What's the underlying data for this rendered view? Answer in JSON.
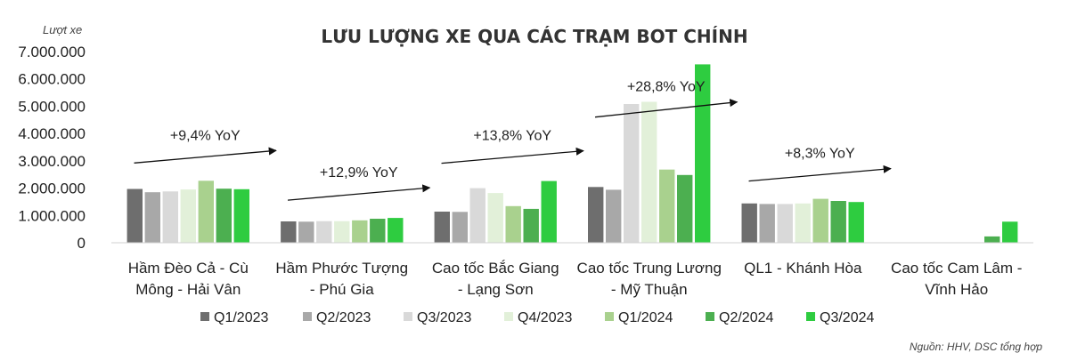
{
  "chart_data": {
    "type": "bar",
    "title": "LƯU LƯỢNG XE QUA CÁC TRẠM BOT CHÍNH",
    "ylabel": "Lượt xe",
    "xlabel": "",
    "ylim": [
      0,
      7000000
    ],
    "yticks": [
      0,
      1000000,
      2000000,
      3000000,
      4000000,
      5000000,
      6000000,
      7000000
    ],
    "ytick_labels": [
      "0",
      "1.000.000",
      "2.000.000",
      "3.000.000",
      "4.000.000",
      "5.000.000",
      "6.000.000",
      "7.000.000"
    ],
    "grid": false,
    "legend_position": "bottom",
    "categories": [
      [
        "Hầm Đèo Cả - Cù",
        "Mông - Hải Vân"
      ],
      [
        "Hầm Phước Tượng",
        "- Phú Gia"
      ],
      [
        "Cao tốc Bắc Giang",
        "- Lạng Sơn"
      ],
      [
        "Cao tốc Trung Lương",
        "- Mỹ Thuận"
      ],
      [
        "QL1 - Khánh Hòa"
      ],
      [
        "Cao tốc Cam Lâm -",
        "Vĩnh Hảo"
      ]
    ],
    "series": [
      {
        "name": "Q1/2023",
        "color": "#6e6e6e",
        "values": [
          1970000,
          780000,
          1140000,
          2040000,
          1440000,
          0
        ]
      },
      {
        "name": "Q2/2023",
        "color": "#a8a8a8",
        "values": [
          1850000,
          770000,
          1130000,
          1940000,
          1420000,
          0
        ]
      },
      {
        "name": "Q3/2023",
        "color": "#d9d9d9",
        "values": [
          1880000,
          790000,
          2000000,
          5080000,
          1420000,
          0
        ]
      },
      {
        "name": "Q4/2023",
        "color": "#e2f0d9",
        "values": [
          1950000,
          790000,
          1820000,
          5160000,
          1440000,
          0
        ]
      },
      {
        "name": "Q1/2024",
        "color": "#a9d18e",
        "values": [
          2270000,
          820000,
          1340000,
          2680000,
          1610000,
          0
        ]
      },
      {
        "name": "Q2/2024",
        "color": "#4caf50",
        "values": [
          1980000,
          880000,
          1240000,
          2480000,
          1530000,
          230000
        ]
      },
      {
        "name": "Q3/2024",
        "color": "#2ecc40",
        "values": [
          1960000,
          910000,
          2260000,
          6530000,
          1490000,
          770000
        ]
      }
    ],
    "annotations": [
      {
        "text": "+9,4% YoY",
        "category_index": 0
      },
      {
        "text": "+12,9% YoY",
        "category_index": 1
      },
      {
        "text": "+13,8% YoY",
        "category_index": 2
      },
      {
        "text": "+28,8% YoY",
        "category_index": 3
      },
      {
        "text": "+8,3% YoY",
        "category_index": 4
      }
    ],
    "source": "Nguồn: HHV, DSC tổng hợp"
  }
}
